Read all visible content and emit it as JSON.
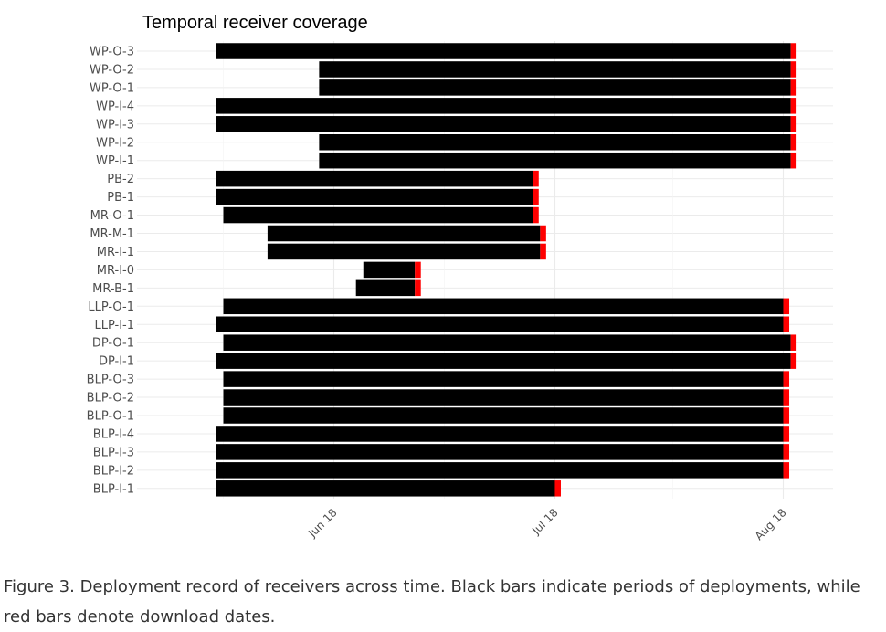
{
  "chart_data": {
    "type": "bar",
    "orientation": "horizontal-gantt",
    "title": "Temporal receiver coverage",
    "xlabel": "",
    "ylabel": "",
    "x_ticks": [
      {
        "date": "2018-06-18",
        "label": "Jun 18"
      },
      {
        "date": "2018-07-18",
        "label": "Jul 18"
      },
      {
        "date": "2018-08-18",
        "label": "Aug 18"
      }
    ],
    "x_minor_ticks": [
      "2018-06-03",
      "2018-07-03",
      "2018-08-03"
    ],
    "xlim": [
      "2018-05-29",
      "2018-08-24"
    ],
    "grid": true,
    "colors": {
      "deployment": "#000000",
      "download": "#ff0000"
    },
    "receivers": [
      {
        "name": "WP-O-3",
        "start": "2018-06-02",
        "end": "2018-08-19",
        "download": "2018-08-19"
      },
      {
        "name": "WP-O-2",
        "start": "2018-06-16",
        "end": "2018-08-19",
        "download": "2018-08-19"
      },
      {
        "name": "WP-O-1",
        "start": "2018-06-16",
        "end": "2018-08-19",
        "download": "2018-08-19"
      },
      {
        "name": "WP-I-4",
        "start": "2018-06-02",
        "end": "2018-08-19",
        "download": "2018-08-19"
      },
      {
        "name": "WP-I-3",
        "start": "2018-06-02",
        "end": "2018-08-19",
        "download": "2018-08-19"
      },
      {
        "name": "WP-I-2",
        "start": "2018-06-16",
        "end": "2018-08-19",
        "download": "2018-08-19"
      },
      {
        "name": "WP-I-1",
        "start": "2018-06-16",
        "end": "2018-08-19",
        "download": "2018-08-19"
      },
      {
        "name": "PB-2",
        "start": "2018-06-02",
        "end": "2018-07-15",
        "download": "2018-07-15"
      },
      {
        "name": "PB-1",
        "start": "2018-06-02",
        "end": "2018-07-15",
        "download": "2018-07-15"
      },
      {
        "name": "MR-O-1",
        "start": "2018-06-03",
        "end": "2018-07-15",
        "download": "2018-07-15"
      },
      {
        "name": "MR-M-1",
        "start": "2018-06-09",
        "end": "2018-07-16",
        "download": "2018-07-16"
      },
      {
        "name": "MR-I-1",
        "start": "2018-06-09",
        "end": "2018-07-16",
        "download": "2018-07-16"
      },
      {
        "name": "MR-I-0",
        "start": "2018-06-22",
        "end": "2018-06-29",
        "download": "2018-06-29"
      },
      {
        "name": "MR-B-1",
        "start": "2018-06-21",
        "end": "2018-06-29",
        "download": "2018-06-29"
      },
      {
        "name": "LLP-O-1",
        "start": "2018-06-03",
        "end": "2018-08-18",
        "download": "2018-08-18"
      },
      {
        "name": "LLP-I-1",
        "start": "2018-06-02",
        "end": "2018-08-18",
        "download": "2018-08-18"
      },
      {
        "name": "DP-O-1",
        "start": "2018-06-03",
        "end": "2018-08-19",
        "download": "2018-08-19"
      },
      {
        "name": "DP-I-1",
        "start": "2018-06-02",
        "end": "2018-08-19",
        "download": "2018-08-19"
      },
      {
        "name": "BLP-O-3",
        "start": "2018-06-03",
        "end": "2018-08-18",
        "download": "2018-08-18"
      },
      {
        "name": "BLP-O-2",
        "start": "2018-06-03",
        "end": "2018-08-18",
        "download": "2018-08-18"
      },
      {
        "name": "BLP-O-1",
        "start": "2018-06-03",
        "end": "2018-08-18",
        "download": "2018-08-18"
      },
      {
        "name": "BLP-I-4",
        "start": "2018-06-02",
        "end": "2018-08-18",
        "download": "2018-08-18"
      },
      {
        "name": "BLP-I-3",
        "start": "2018-06-02",
        "end": "2018-08-18",
        "download": "2018-08-18"
      },
      {
        "name": "BLP-I-2",
        "start": "2018-06-02",
        "end": "2018-08-18",
        "download": "2018-08-18"
      },
      {
        "name": "BLP-I-1",
        "start": "2018-06-02",
        "end": "2018-07-18",
        "download": "2018-07-18"
      }
    ]
  },
  "caption": "Figure 3. Deployment record of receivers across time. Black bars indicate periods of deployments, while red bars denote download dates."
}
